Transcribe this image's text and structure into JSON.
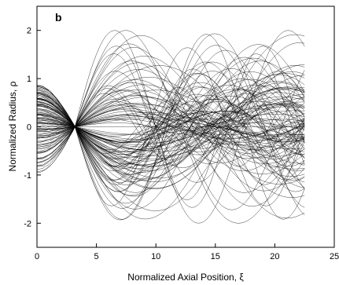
{
  "chart_data": {
    "type": "line",
    "panel_label": "b",
    "xlabel": "Normalized Axial Position,  ξ",
    "ylabel": "Normalized Radius,  ρ",
    "xlim": [
      0,
      25
    ],
    "ylim": [
      -2.5,
      2.5
    ],
    "x_ticks": [
      0,
      5,
      10,
      15,
      20,
      25
    ],
    "y_ticks": [
      -2,
      -1,
      0,
      1,
      2
    ],
    "grid": false,
    "legend": "none",
    "data_x_range": [
      0,
      22.5
    ],
    "focus_point": {
      "x": 3.2,
      "y": 0
    },
    "series_count": 120,
    "line_color": "#000000",
    "series_description": "ray trajectories: oscillating radius vs axial position, converging near xi = 3.2 then diverging with amplitudes up to about 2"
  }
}
